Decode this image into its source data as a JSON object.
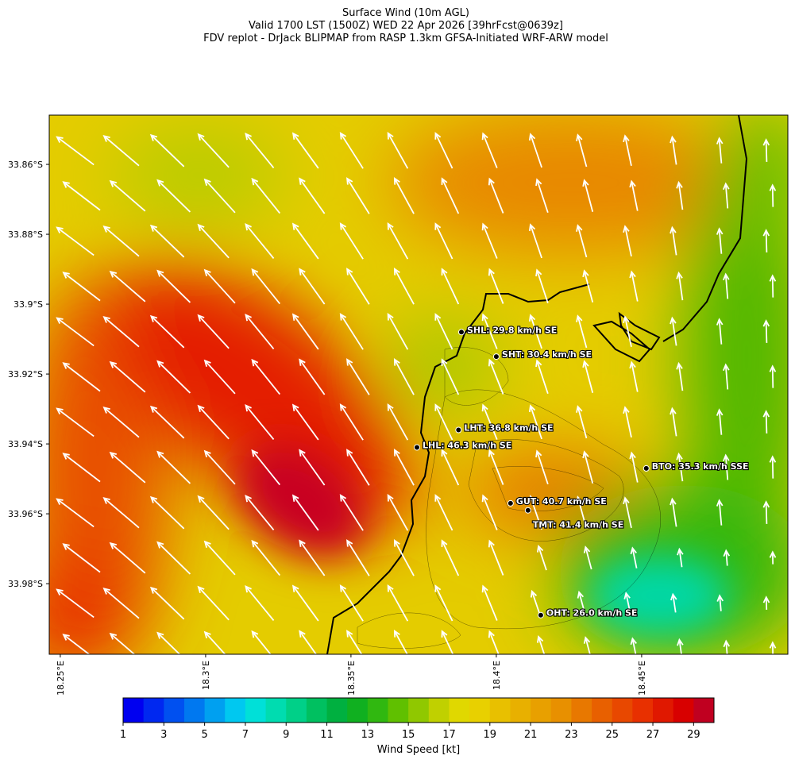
{
  "map": {
    "title": [
      "Surface Wind (10m AGL)",
      "Valid 1700 LST (1500Z) WED 22 Apr 2026 [39hrFcst@0639z]",
      "FDV replot - DrJack BLIPMAP from RASP 1.3km GFSA-Initiated WRF-ARW model"
    ],
    "xlim": [
      18.2462,
      18.5003
    ],
    "ylim": [
      -34.0002,
      -33.8459
    ],
    "xticks": [
      {
        "value": 18.25,
        "label": "18.25°E"
      },
      {
        "value": 18.3,
        "label": "18.3°E"
      },
      {
        "value": 18.35,
        "label": "18.35°E"
      },
      {
        "value": 18.4,
        "label": "18.4°E"
      },
      {
        "value": 18.45,
        "label": "18.45°E"
      }
    ],
    "yticks": [
      {
        "value": -33.86,
        "label": "33.86°S"
      },
      {
        "value": -33.88,
        "label": "33.88°S"
      },
      {
        "value": -33.9,
        "label": "33.9°S"
      },
      {
        "value": -33.92,
        "label": "33.92°S"
      },
      {
        "value": -33.94,
        "label": "33.94°S"
      },
      {
        "value": -33.96,
        "label": "33.96°S"
      },
      {
        "value": -33.98,
        "label": "33.98°S"
      }
    ],
    "stations": [
      {
        "label": "SHL: 29.8 km/h SE",
        "lon": 18.388,
        "lat": -33.908
      },
      {
        "label": "SHT: 30.4 km/h SE",
        "lon": 18.4,
        "lat": -33.915
      },
      {
        "label": "LHT: 36.8 km/h SE",
        "lon": 18.387,
        "lat": -33.936
      },
      {
        "label": "LHL: 46.3 km/h SE",
        "lon": 18.3727,
        "lat": -33.941
      },
      {
        "label": "BTO: 35.3 km/h SSE",
        "lon": 18.4516,
        "lat": -33.947
      },
      {
        "label": "GUT: 40.7 km/h SE",
        "lon": 18.4049,
        "lat": -33.957
      },
      {
        "label": "TMT: 41.4 km/h SE",
        "lon": 18.4109,
        "lat": -33.959
      },
      {
        "label": "OHT: 26.0 km/h SE",
        "lon": 18.4153,
        "lat": -33.989
      }
    ],
    "colorbar": {
      "label": "Wind Speed [kt]",
      "lim": [
        1,
        30
      ],
      "ticks": [
        1,
        3,
        5,
        7,
        9,
        11,
        13,
        15,
        17,
        19,
        21,
        23,
        25,
        27,
        29
      ],
      "colors": [
        "#0000f0",
        "#0028f0",
        "#0050f0",
        "#0078f0",
        "#00a0f0",
        "#00c8f0",
        "#00e0d8",
        "#00dcb0",
        "#00d088",
        "#00c060",
        "#00b040",
        "#10b020",
        "#30b810",
        "#60c000",
        "#90c800",
        "#c0d000",
        "#e0d800",
        "#e8d000",
        "#e8c000",
        "#e8b000",
        "#e8a000",
        "#e89000",
        "#e87800",
        "#e86000",
        "#e84800",
        "#e83000",
        "#e01800",
        "#d80000",
        "#c00020"
      ]
    }
  }
}
